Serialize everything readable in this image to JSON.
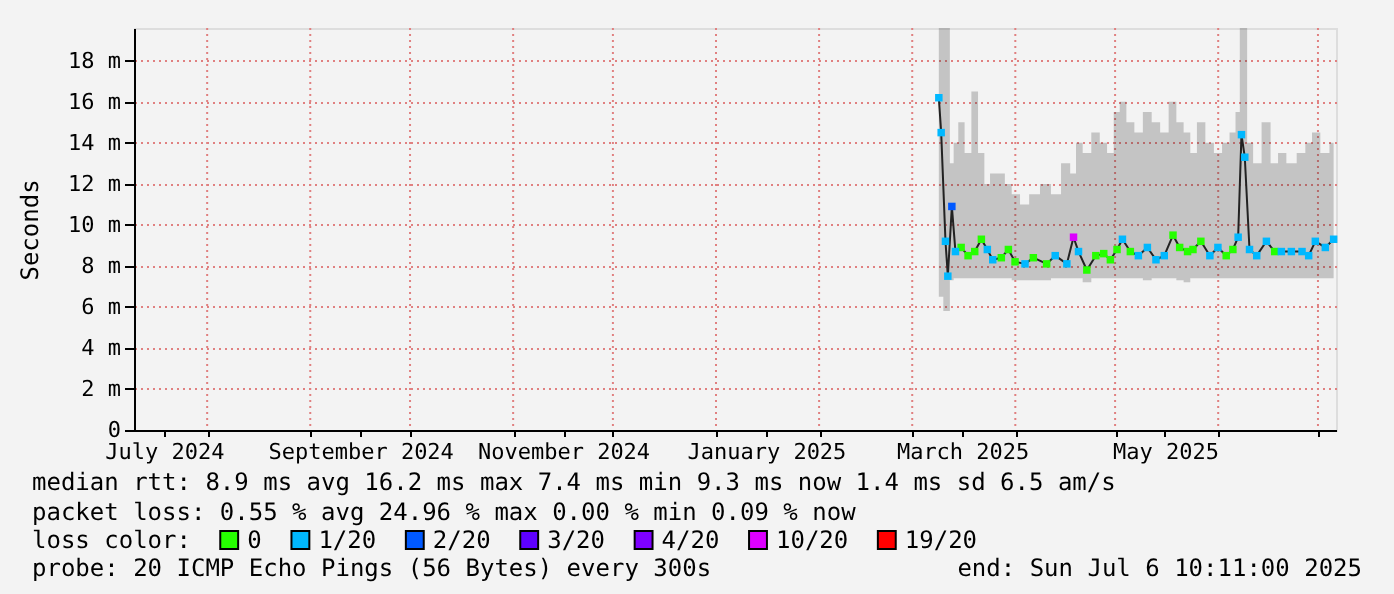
{
  "chart_data": {
    "type": "line",
    "ylabel": "Seconds",
    "xlim": [
      "2024-07-10",
      "2025-07-06T10:11"
    ],
    "xticks": [
      {
        "value": "2024-07-19",
        "label": "July 2024"
      },
      {
        "value": "2024-09-16",
        "label": "September 2024"
      },
      {
        "value": "2024-11-16",
        "label": "November 2024"
      },
      {
        "value": "2025-01-16",
        "label": "January 2025"
      },
      {
        "value": "2025-03-16",
        "label": "March 2025"
      },
      {
        "value": "2025-05-16",
        "label": "May 2025"
      },
      {
        "value": "2024-08-01",
        "label": null
      },
      {
        "value": "2024-09-01",
        "label": null
      },
      {
        "value": "2024-10-01",
        "label": null
      },
      {
        "value": "2024-11-01",
        "label": null
      },
      {
        "value": "2024-12-01",
        "label": null
      },
      {
        "value": "2025-01-01",
        "label": null
      },
      {
        "value": "2025-02-01",
        "label": null
      },
      {
        "value": "2025-03-01",
        "label": null
      },
      {
        "value": "2025-04-01",
        "label": null
      },
      {
        "value": "2025-05-01",
        "label": null
      },
      {
        "value": "2025-06-01",
        "label": null
      },
      {
        "value": "2025-07-01",
        "label": null
      }
    ],
    "ylim": [
      0,
      19.6
    ],
    "yticks": [
      0,
      {
        "value": 2,
        "label": "2 m"
      },
      {
        "value": 4,
        "label": "4 m"
      },
      {
        "value": 6,
        "label": "6 m"
      },
      {
        "value": 8,
        "label": "8 m"
      },
      {
        "value": 10,
        "label": "10 m"
      },
      {
        "value": 12,
        "label": "12 m"
      },
      {
        "value": 14,
        "label": "14 m"
      },
      {
        "value": 16,
        "label": "16 m"
      },
      {
        "value": 18,
        "label": "18 m"
      }
    ],
    "grid": true,
    "legend": "bottom",
    "legend_title": "loss color:",
    "x": [
      "2025-03-09",
      "2025-03-09T17:00",
      "2025-03-11",
      "2025-03-11T17:00",
      "2025-03-12T22:00",
      "2025-03-14",
      "2025-03-15T17:00",
      "2025-03-17T19:00",
      "2025-03-19T19:00",
      "2025-03-21T19:00",
      "2025-03-23T14:00",
      "2025-03-25T05:00",
      "2025-03-27T19:00",
      "2025-03-29T22:00",
      "2025-03-31T22:00",
      "2025-04-03T22:00",
      "2025-04-06T10:00",
      "2025-04-10T10:00",
      "2025-04-13",
      "2025-04-16T12:00",
      "2025-04-18T12:00",
      "2025-04-20",
      "2025-04-22T12:00",
      "2025-04-25T05:00",
      "2025-04-27T14:00",
      "2025-04-29T14:00",
      "2025-05-01T14:00",
      "2025-05-03T05:00",
      "2025-05-05T14:00",
      "2025-05-08",
      "2025-05-10T17:00",
      "2025-05-13T07:00",
      "2025-05-15T19:00",
      "2025-05-18T10:00",
      "2025-05-20T10:00",
      "2025-05-22T19:00",
      "2025-05-24T10:00",
      "2025-05-26T19:00",
      "2025-05-29T12:00",
      "2025-05-31T22:00",
      "2025-06-03T10:00",
      "2025-06-05T10:00",
      "2025-06-07",
      "2025-06-08",
      "2025-06-09",
      "2025-06-10T10:00",
      "2025-06-12T14:00",
      "2025-06-15T12:00",
      "2025-06-18",
      "2025-06-20",
      "2025-06-23",
      "2025-06-26T05:00",
      "2025-06-28T05:00",
      "2025-06-30T05:00",
      "2025-07-03T05:00",
      "2025-07-05T17:00"
    ],
    "series": [
      {
        "type": "line",
        "color": "#222222",
        "values": [
          16.2,
          14.5,
          9.2,
          7.5,
          10.9,
          8.7,
          8.9,
          8.5,
          8.7,
          9.3,
          8.8,
          8.3,
          8.4,
          8.8,
          8.2,
          8.1,
          8.4,
          8.1,
          8.5,
          8.1,
          9.4,
          8.7,
          7.8,
          8.5,
          8.6,
          8.3,
          8.8,
          9.3,
          8.7,
          8.5,
          8.9,
          8.3,
          8.5,
          9.5,
          8.9,
          8.7,
          8.8,
          9.2,
          8.5,
          8.9,
          8.5,
          8.8,
          9.4,
          14.4,
          13.3,
          8.8,
          8.5,
          9.2,
          8.7,
          8.7,
          8.7,
          8.7,
          8.5,
          9.2,
          8.9,
          9.3
        ],
        "lower": [
          6.5,
          6.5,
          5.8,
          5.8,
          7.3,
          7.4,
          7.4,
          7.4,
          7.4,
          7.4,
          7.4,
          7.4,
          7.4,
          7.4,
          7.3,
          7.3,
          7.3,
          7.3,
          7.4,
          7.4,
          7.4,
          7.4,
          7.2,
          7.4,
          7.4,
          7.4,
          7.4,
          7.4,
          7.4,
          7.4,
          7.3,
          7.4,
          7.4,
          7.4,
          7.3,
          7.2,
          7.4,
          7.4,
          7.4,
          7.4,
          7.4,
          7.4,
          7.4,
          7.4,
          7.4,
          7.4,
          7.4,
          7.4,
          7.4,
          7.4,
          7.4,
          7.4,
          7.4,
          7.4,
          7.4,
          7.4
        ],
        "upper": [
          19.6,
          19.6,
          19.6,
          19.6,
          13.0,
          14.0,
          15.0,
          13.5,
          16.5,
          13.5,
          12.0,
          12.5,
          12.5,
          12.0,
          11.5,
          11.0,
          11.5,
          12.0,
          11.5,
          13.0,
          12.5,
          14.0,
          13.5,
          14.5,
          14.0,
          13.5,
          15.5,
          16.0,
          15.0,
          14.5,
          15.5,
          15.0,
          14.5,
          16.0,
          15.0,
          14.5,
          13.5,
          15.0,
          14.0,
          13.5,
          14.0,
          14.5,
          15.5,
          19.6,
          19.6,
          14.0,
          13.0,
          15.0,
          13.0,
          13.5,
          13.0,
          13.5,
          14.0,
          14.5,
          13.5,
          14.0
        ]
      },
      {
        "type": "scatter",
        "name": "0",
        "color": "#26ff00",
        "marker": "square",
        "x": [
          "2025-03-15T17:00",
          "2025-03-17T19:00",
          "2025-03-19T19:00",
          "2025-03-21T19:00",
          "2025-03-27T19:00",
          "2025-03-29T22:00",
          "2025-03-31T22:00",
          "2025-04-06T10:00",
          "2025-04-10T10:00",
          "2025-04-22T12:00",
          "2025-04-25T05:00",
          "2025-04-27T14:00",
          "2025-04-29T14:00",
          "2025-05-01T14:00",
          "2025-05-05T14:00",
          "2025-05-18T10:00",
          "2025-05-20T10:00",
          "2025-05-22T19:00",
          "2025-05-24T10:00",
          "2025-05-26T19:00",
          "2025-06-03T10:00",
          "2025-06-05T10:00",
          "2025-06-18"
        ],
        "values": [
          8.9,
          8.5,
          8.7,
          9.3,
          8.4,
          8.8,
          8.2,
          8.4,
          8.1,
          7.8,
          8.5,
          8.6,
          8.3,
          8.8,
          8.7,
          9.5,
          8.9,
          8.7,
          8.8,
          9.2,
          8.5,
          8.8,
          8.7
        ]
      },
      {
        "type": "scatter",
        "name": "1/20",
        "color": "#00b8ff",
        "marker": "square",
        "x": [
          "2025-03-09",
          "2025-03-09T17:00",
          "2025-03-11",
          "2025-03-11T17:00",
          "2025-03-14",
          "2025-03-23T14:00",
          "2025-03-25T05:00",
          "2025-04-03T22:00",
          "2025-04-13",
          "2025-04-16T12:00",
          "2025-04-20",
          "2025-05-03T05:00",
          "2025-05-08",
          "2025-05-10T17:00",
          "2025-05-13T07:00",
          "2025-05-15T19:00",
          "2025-05-29T12:00",
          "2025-05-31T22:00",
          "2025-06-07",
          "2025-06-08",
          "2025-06-09",
          "2025-06-10T10:00",
          "2025-06-12T14:00",
          "2025-06-15T12:00",
          "2025-06-20",
          "2025-06-23",
          "2025-06-26T05:00",
          "2025-06-28T05:00",
          "2025-06-30T05:00",
          "2025-07-03T05:00",
          "2025-07-05T17:00"
        ],
        "values": [
          16.2,
          14.5,
          9.2,
          7.5,
          8.7,
          8.8,
          8.3,
          8.1,
          8.5,
          8.1,
          8.7,
          9.3,
          8.5,
          8.9,
          8.3,
          8.5,
          8.5,
          8.9,
          9.4,
          14.4,
          13.3,
          8.8,
          8.5,
          9.2,
          8.7,
          8.7,
          8.7,
          8.5,
          9.2,
          8.9,
          9.3
        ]
      },
      {
        "type": "scatter",
        "name": "2/20",
        "color": "#0059ff",
        "marker": "square",
        "x": [
          "2025-03-12T22:00"
        ],
        "values": [
          10.9
        ]
      },
      {
        "type": "scatter",
        "name": "3/20",
        "color": "#5e00ff",
        "marker": "square",
        "values": [
          null,
          null,
          null,
          null,
          null,
          null,
          null,
          null,
          null,
          null,
          null,
          null,
          null,
          null,
          null,
          null,
          null,
          null,
          null,
          null,
          null,
          null,
          null,
          null,
          null,
          null,
          null,
          null,
          null,
          null,
          null,
          null,
          null,
          null,
          null,
          null,
          null,
          null,
          null,
          null,
          null,
          null,
          null,
          null,
          null,
          null,
          null,
          null,
          null,
          null,
          null,
          null,
          null,
          null,
          null,
          null
        ]
      },
      {
        "type": "scatter",
        "name": "4/20",
        "color": "#7e00ff",
        "marker": "square",
        "values": [
          null,
          null,
          null,
          null,
          null,
          null,
          null,
          null,
          null,
          null,
          null,
          null,
          null,
          null,
          null,
          null,
          null,
          null,
          null,
          null,
          null,
          null,
          null,
          null,
          null,
          null,
          null,
          null,
          null,
          null,
          null,
          null,
          null,
          null,
          null,
          null,
          null,
          null,
          null,
          null,
          null,
          null,
          null,
          null,
          null,
          null,
          null,
          null,
          null,
          null,
          null,
          null,
          null,
          null,
          null,
          null
        ]
      },
      {
        "type": "scatter",
        "name": "10/20",
        "color": "#dd00ff",
        "marker": "square",
        "x": [
          "2025-04-18T12:00"
        ],
        "values": [
          9.4
        ]
      },
      {
        "type": "scatter",
        "name": "19/20",
        "color": "#ff0000",
        "marker": "square",
        "values": [
          null,
          null,
          null,
          null,
          null,
          null,
          null,
          null,
          null,
          null,
          null,
          null,
          null,
          null,
          null,
          null,
          null,
          null,
          null,
          null,
          null,
          null,
          null,
          null,
          null,
          null,
          null,
          null,
          null,
          null,
          null,
          null,
          null,
          null,
          null,
          null,
          null,
          null,
          null,
          null,
          null,
          null,
          null,
          null,
          null,
          null,
          null,
          null,
          null,
          null,
          null,
          null,
          null,
          null,
          null,
          null
        ]
      }
    ],
    "annotations": [
      "median rtt:  8.9 ms avg  16.2 ms max  7.4 ms min  9.3 ms now  1.4 ms sd  6.5   am/s",
      "packet loss: 0.55 % avg  24.96 % max  0.00 % min  0.09 % now",
      "probe:       20 ICMP Echo Pings (56 Bytes) every 300s",
      "end: Sun Jul  6 10:11:00 2025"
    ]
  }
}
